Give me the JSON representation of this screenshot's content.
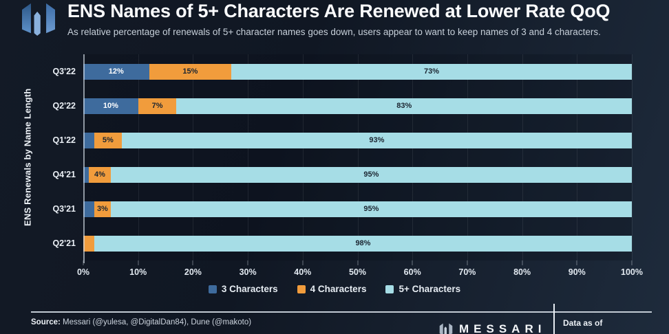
{
  "header": {
    "title": "ENS Names of 5+ Characters Are Renewed at Lower Rate QoQ",
    "subtitle": "As relative percentage of renewals of 5+ character names goes down, users appear to want to keep names of 3 and 4 characters."
  },
  "chart_data": {
    "type": "bar",
    "orientation": "horizontal",
    "stacked": true,
    "title": "ENS Names of 5+ Characters Are Renewed at Lower Rate QoQ",
    "xlabel": "",
    "ylabel": "ENS Renewals by Name Length",
    "categories": [
      "Q3'22",
      "Q2'22",
      "Q1'22",
      "Q4'21",
      "Q3'21",
      "Q2'21"
    ],
    "series": [
      {
        "name": "3 Characters",
        "color": "#3e6b9d",
        "label_color": "#ffffff",
        "values": [
          12,
          10,
          2,
          1,
          2,
          0
        ]
      },
      {
        "name": "4 Characters",
        "color": "#f19c3c",
        "label_color": "#1b2531",
        "values": [
          15,
          7,
          5,
          4,
          3,
          2
        ]
      },
      {
        "name": "5+ Characters",
        "color": "#a6dde6",
        "label_color": "#1b2531",
        "values": [
          73,
          83,
          93,
          95,
          95,
          98
        ]
      }
    ],
    "xlim": [
      0,
      100
    ],
    "x_ticks": [
      "0%",
      "10%",
      "20%",
      "30%",
      "40%",
      "50%",
      "60%",
      "70%",
      "80%",
      "90%",
      "100%"
    ],
    "value_suffix": "%",
    "label_threshold": 3,
    "grid": "vertical",
    "legend_position": "bottom"
  },
  "footer": {
    "source_label": "Source:",
    "source_text": " Messari (@yulesa, @DigitalDan84), Dune (@makoto)",
    "brand": "MESSARI",
    "data_as_of": "Data as of"
  },
  "colors": {
    "background_dark": "#101723",
    "background_light": "#1e2b3c",
    "bar_blue": "#3e6b9d",
    "bar_orange": "#f19c3c",
    "bar_cyan": "#a6dde6",
    "logo_blue_dark": "#2c5787",
    "logo_blue_mid": "#4a7cb5",
    "logo_blue_light": "#8ab1dd"
  }
}
